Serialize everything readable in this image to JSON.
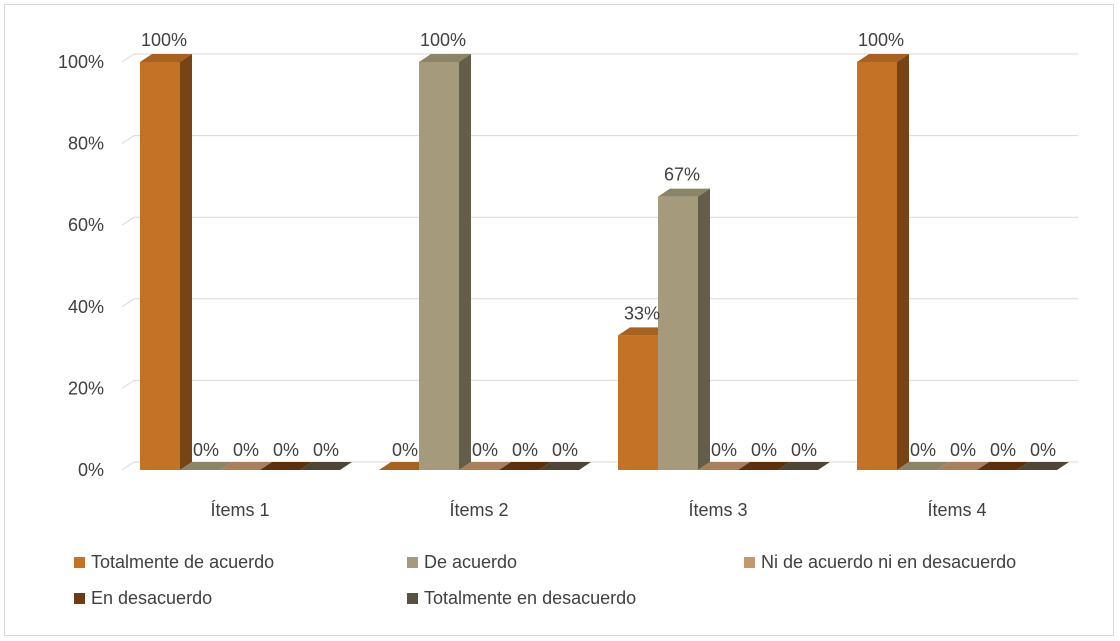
{
  "chart_data": {
    "type": "bar",
    "categories": [
      "Ítems 1",
      "Ítems 2",
      "Ítems 3",
      "Ítems 4"
    ],
    "series": [
      {
        "name": "Totalmente de acuerdo",
        "color": "#c47226",
        "values": [
          100,
          0,
          33,
          100
        ],
        "labels": [
          "100%",
          "0%",
          "33%",
          "100%"
        ]
      },
      {
        "name": "De acuerdo",
        "color": "#a59b7c",
        "values": [
          0,
          100,
          67,
          0
        ],
        "labels": [
          "0%",
          "100%",
          "67%",
          "0%"
        ]
      },
      {
        "name": "Ni de acuerdo ni en desacuerdo",
        "color": "#c6976b",
        "values": [
          0,
          0,
          0,
          0
        ],
        "labels": [
          "0%",
          "0%",
          "0%",
          "0%"
        ]
      },
      {
        "name": "En desacuerdo",
        "color": "#6e3a10",
        "values": [
          0,
          0,
          0,
          0
        ],
        "labels": [
          "0%",
          "0%",
          "0%",
          "0%"
        ]
      },
      {
        "name": "Totalmente en desacuerdo",
        "color": "#5a5240",
        "values": [
          0,
          0,
          0,
          0
        ],
        "labels": [
          "0%",
          "0%",
          "0%",
          "0%"
        ]
      }
    ],
    "y_ticks": [
      "0%",
      "20%",
      "40%",
      "60%",
      "80%",
      "100%"
    ],
    "ylim": [
      0,
      100
    ],
    "grid": true,
    "legend_position": "bottom"
  }
}
